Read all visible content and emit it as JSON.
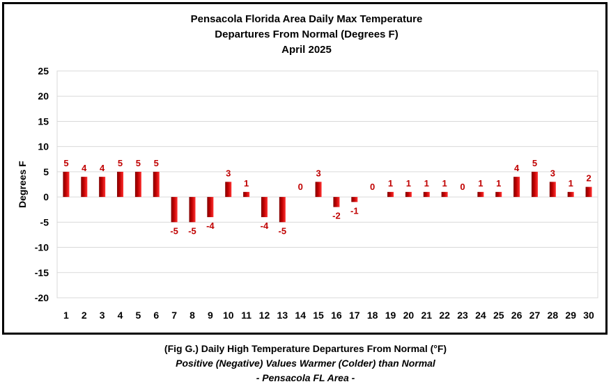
{
  "colors": {
    "bar_dark": "#7f0000",
    "bar_mid": "#c00000",
    "bar_light": "#ff3333",
    "data_label": "#c00000",
    "grid": "#d9d9d9"
  },
  "chart_data": {
    "type": "bar",
    "title_lines": [
      "Pensacola Florida Area Daily Max Temperature",
      "Departures From Normal (Degrees F)",
      "April 2025"
    ],
    "xlabel": "",
    "ylabel": "Degrees F",
    "ylim": [
      -20,
      25
    ],
    "y_ticks": [
      25,
      20,
      15,
      10,
      5,
      0,
      -5,
      -10,
      -15,
      -20
    ],
    "grid": true,
    "legend": "none",
    "categories": [
      "1",
      "2",
      "3",
      "4",
      "5",
      "6",
      "7",
      "8",
      "9",
      "10",
      "11",
      "12",
      "13",
      "14",
      "15",
      "16",
      "17",
      "18",
      "19",
      "20",
      "21",
      "22",
      "23",
      "24",
      "25",
      "26",
      "27",
      "28",
      "29",
      "30"
    ],
    "values": [
      5,
      4,
      4,
      5,
      5,
      5,
      -5,
      -5,
      -4,
      3,
      1,
      -4,
      -5,
      0,
      3,
      -2,
      -1,
      0,
      1,
      1,
      1,
      1,
      0,
      1,
      1,
      4,
      5,
      3,
      1,
      2
    ],
    "data_labels": [
      "5",
      "4",
      "4",
      "5",
      "5",
      "5",
      "-5",
      "-5",
      "-4",
      "3",
      "1",
      "-4",
      "-5",
      "0",
      "3",
      "-2",
      "-1",
      "0",
      "1",
      "1",
      "1",
      "1",
      "0",
      "1",
      "1",
      "4",
      "5",
      "3",
      "1",
      "2"
    ]
  },
  "caption": {
    "line1": "(Fig G.) Daily High Temperature Departures From Normal (°F)",
    "line2": "Positive (Negative) Values Warmer (Colder) than Normal",
    "line3": "- Pensacola FL Area -"
  }
}
